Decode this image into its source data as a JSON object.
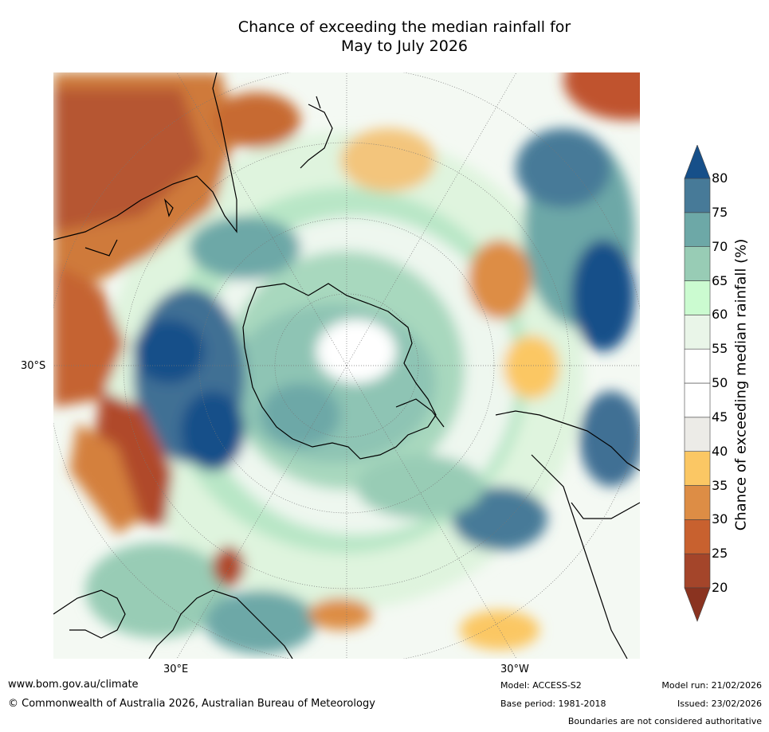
{
  "title_line1": "Chance of exceeding the median rainfall for",
  "title_line2": "May to July 2026",
  "map": {
    "lat_label": "30°S",
    "lon_label_east": "30°E",
    "lon_label_west": "30°W"
  },
  "colorbar": {
    "label": "Chance of exceeding median rainfall (%)",
    "ticks": [
      "20",
      "25",
      "30",
      "35",
      "40",
      "45",
      "50",
      "55",
      "60",
      "65",
      "70",
      "75",
      "80"
    ],
    "colors": [
      "#a4452a",
      "#c8612f",
      "#dd8d45",
      "#fbc764",
      "#ecebe7",
      "#ffffff",
      "#ffffff",
      "#e9f5e8",
      "#cbfbd0",
      "#98ccb5",
      "#6da8a7",
      "#477a98",
      "#164f89"
    ],
    "under_color": "#8a3320",
    "over_color": "#164f89"
  },
  "footer": {
    "url": "www.bom.gov.au/climate",
    "copyright": "© Commonwealth of Australia 2026, Australian Bureau of Meteorology",
    "model": "Model: ACCESS-S2",
    "base_period": "Base period: 1981-2018",
    "model_run": "Model run: 21/02/2026",
    "issued": "Issued: 23/02/2026",
    "disclaimer": "Boundaries are not considered authoritative"
  }
}
